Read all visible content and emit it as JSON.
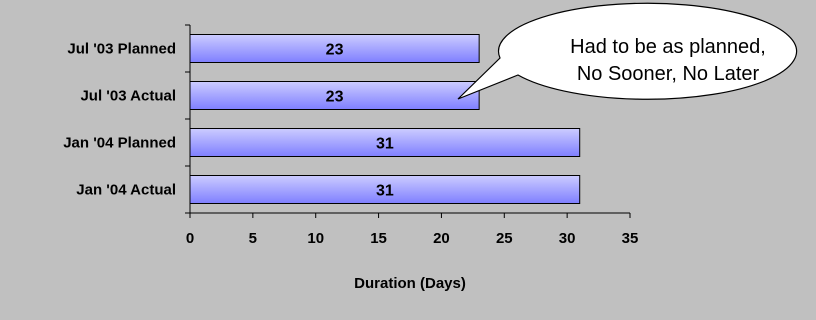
{
  "chart_data": {
    "type": "bar",
    "orientation": "horizontal",
    "categories": [
      "Jul '03 Planned",
      "Jul '03 Actual",
      "Jan '04 Planned",
      "Jan '04 Actual"
    ],
    "values": [
      23,
      23,
      31,
      31
    ],
    "data_labels": [
      "23",
      "23",
      "31",
      "31"
    ],
    "xlabel": "Duration (Days)",
    "ylabel": "",
    "xlim": [
      0,
      35
    ],
    "xticks": [
      "0",
      "5",
      "10",
      "15",
      "20",
      "25",
      "30",
      "35"
    ],
    "grid": false,
    "legend": "none",
    "annotation": {
      "lines": [
        "Had to be as planned,",
        "No Sooner, No Later"
      ],
      "points_to": "Jul '03 Actual"
    },
    "colors": {
      "plot_background": "#c0c0c0",
      "bar_fill_light": "#ccccff",
      "bar_fill_dark": "#7f7fff",
      "bar_outline": "#000000",
      "callout_fill": "#ffffff"
    }
  }
}
